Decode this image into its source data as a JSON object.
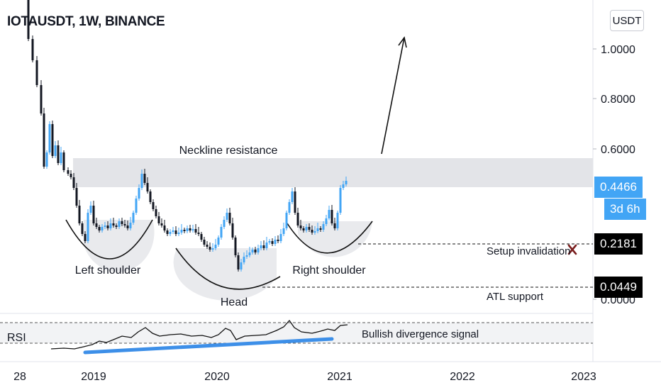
{
  "header": {
    "title": "IOTAUSDT, 1W, BINANCE",
    "currency_button": "USDT"
  },
  "price_axis": {
    "ticks": [
      "1.0000",
      "0.8000",
      "0.6000",
      "0.0000"
    ],
    "current_price": "0.4466",
    "countdown": "3d 6h",
    "invalidation_price": "0.2181",
    "atl_price": "0.0449"
  },
  "time_axis": {
    "ticks": [
      "28",
      "2019",
      "2020",
      "2021",
      "2022",
      "2023"
    ]
  },
  "annotations": {
    "neckline": "Neckline resistance",
    "left_shoulder": "Left shoulder",
    "head": "Head",
    "right_shoulder": "Right shoulder",
    "setup_invalidation": "Setup invalidation",
    "atl_support": "ATL support",
    "bullish_divergence": "Bullish divergence signal",
    "rsi_label": "RSI"
  },
  "colors": {
    "up_candle": "#42a5f5",
    "down_candle": "#131722",
    "neckline_zone": "#e0e1e5",
    "shoulder_fill": "#e8e9ec",
    "divergence_line": "#3d8fe8",
    "invalidation_cross": "#7a1f1f"
  },
  "chart_data": {
    "type": "candlestick",
    "symbol": "IOTAUSDT",
    "interval": "1W",
    "exchange": "BINANCE",
    "y_ticks": [
      1.0,
      0.8,
      0.6,
      0.0
    ],
    "x_ticks": [
      "28",
      "2019",
      "2020",
      "2021",
      "2022",
      "2023"
    ],
    "last_price": 0.4466,
    "levels": [
      {
        "label": "Setup invalidation",
        "value": 0.2181
      },
      {
        "label": "ATL support",
        "value": 0.0449
      }
    ],
    "zones": [
      {
        "label": "Neckline resistance",
        "from": 0.46,
        "to": 0.57
      }
    ],
    "pattern": [
      "Left shoulder",
      "Head",
      "Right shoulder"
    ],
    "indicator": {
      "name": "RSI",
      "note": "Bullish divergence signal"
    }
  }
}
